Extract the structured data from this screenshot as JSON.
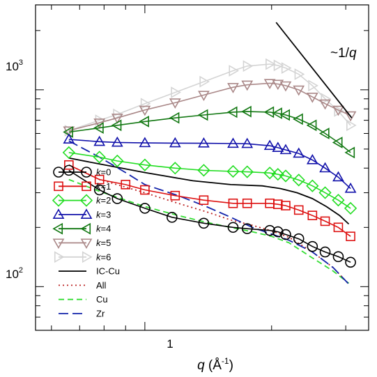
{
  "chart_data": {
    "type": "line",
    "x_scale": "log",
    "y_scale": "log",
    "xlim": [
      0.55,
      3.4
    ],
    "ylim": [
      60,
      2700
    ],
    "xlabel_main": "q",
    "xlabel_unit": "(Å",
    "xlabel_exp": "-1",
    "xlabel_close": ")",
    "x_tick_labels": [
      {
        "value": 1,
        "label": "1"
      }
    ],
    "y_tick_labels": [
      {
        "value": 100,
        "base": "10",
        "exp": "2"
      },
      {
        "value": 1000,
        "base": "10",
        "exp": "3"
      }
    ],
    "annotation": {
      "prefix": "~1/",
      "q": "q"
    },
    "reference_line": {
      "points": [
        [
          2.05,
          2200
        ],
        [
          3.1,
          720
        ]
      ]
    },
    "grid": false,
    "legend_position": "center-left",
    "series": [
      {
        "name": "k=0",
        "kind": "marker",
        "marker": "circle",
        "color": "#000000",
        "points": [
          [
            0.66,
            390
          ],
          [
            0.78,
            310
          ],
          [
            0.86,
            280
          ],
          [
            1.0,
            250
          ],
          [
            1.16,
            225
          ],
          [
            1.38,
            210
          ],
          [
            1.62,
            200
          ],
          [
            1.75,
            197
          ],
          [
            1.98,
            193
          ],
          [
            2.07,
            190
          ],
          [
            2.16,
            184
          ],
          [
            2.32,
            175
          ],
          [
            2.5,
            160
          ],
          [
            2.68,
            150
          ],
          [
            2.88,
            142
          ],
          [
            3.08,
            133
          ]
        ]
      },
      {
        "name": "k=1",
        "kind": "marker",
        "marker": "square",
        "color": "#dd1111",
        "points": [
          [
            0.66,
            415
          ],
          [
            0.78,
            350
          ],
          [
            0.9,
            330
          ],
          [
            1.0,
            310
          ],
          [
            1.18,
            290
          ],
          [
            1.38,
            275
          ],
          [
            1.62,
            265
          ],
          [
            1.75,
            265
          ],
          [
            1.98,
            265
          ],
          [
            2.07,
            262
          ],
          [
            2.16,
            258
          ],
          [
            2.32,
            245
          ],
          [
            2.5,
            230
          ],
          [
            2.68,
            215
          ],
          [
            2.88,
            200
          ],
          [
            3.08,
            180
          ]
        ]
      },
      {
        "name": "k=2",
        "kind": "marker",
        "marker": "diamond",
        "color": "#22dd22",
        "points": [
          [
            0.66,
            480
          ],
          [
            0.78,
            455
          ],
          [
            0.86,
            435
          ],
          [
            1.0,
            415
          ],
          [
            1.18,
            400
          ],
          [
            1.38,
            390
          ],
          [
            1.62,
            385
          ],
          [
            1.75,
            383
          ],
          [
            1.98,
            378
          ],
          [
            2.07,
            372
          ],
          [
            2.16,
            365
          ],
          [
            2.32,
            348
          ],
          [
            2.5,
            325
          ],
          [
            2.68,
            300
          ],
          [
            2.88,
            275
          ],
          [
            3.08,
            250
          ]
        ]
      },
      {
        "name": "k=3",
        "kind": "marker",
        "marker": "triangle-up",
        "color": "#1111aa",
        "points": [
          [
            0.66,
            560
          ],
          [
            0.78,
            545
          ],
          [
            0.86,
            540
          ],
          [
            1.0,
            537
          ],
          [
            1.18,
            536
          ],
          [
            1.38,
            535
          ],
          [
            1.62,
            533
          ],
          [
            1.75,
            532
          ],
          [
            1.98,
            520
          ],
          [
            2.07,
            508
          ],
          [
            2.16,
            495
          ],
          [
            2.32,
            475
          ],
          [
            2.5,
            440
          ],
          [
            2.68,
            400
          ],
          [
            2.88,
            360
          ],
          [
            3.08,
            315
          ]
        ]
      },
      {
        "name": "k=4",
        "kind": "marker",
        "marker": "triangle-left",
        "color": "#117711",
        "points": [
          [
            0.66,
            610
          ],
          [
            0.78,
            640
          ],
          [
            0.86,
            660
          ],
          [
            1.0,
            690
          ],
          [
            1.18,
            720
          ],
          [
            1.38,
            745
          ],
          [
            1.62,
            770
          ],
          [
            1.75,
            775
          ],
          [
            1.98,
            770
          ],
          [
            2.07,
            760
          ],
          [
            2.16,
            745
          ],
          [
            2.32,
            710
          ],
          [
            2.5,
            660
          ],
          [
            2.68,
            600
          ],
          [
            2.88,
            540
          ],
          [
            3.08,
            480
          ]
        ]
      },
      {
        "name": "k=5",
        "kind": "marker",
        "marker": "triangle-down",
        "color": "#aa8888",
        "points": [
          [
            0.66,
            620
          ],
          [
            0.78,
            680
          ],
          [
            0.86,
            720
          ],
          [
            1.0,
            790
          ],
          [
            1.18,
            860
          ],
          [
            1.38,
            940
          ],
          [
            1.62,
            1030
          ],
          [
            1.75,
            1060
          ],
          [
            1.98,
            1080
          ],
          [
            2.07,
            1070
          ],
          [
            2.16,
            1050
          ],
          [
            2.32,
            1000
          ],
          [
            2.5,
            920
          ],
          [
            2.68,
            850
          ],
          [
            2.88,
            790
          ],
          [
            3.08,
            740
          ]
        ]
      },
      {
        "name": "k=6",
        "kind": "marker",
        "marker": "triangle-right",
        "color": "#d4d4d4",
        "points": [
          [
            0.66,
            620
          ],
          [
            0.78,
            700
          ],
          [
            0.86,
            750
          ],
          [
            1.0,
            850
          ],
          [
            1.18,
            970
          ],
          [
            1.38,
            1100
          ],
          [
            1.62,
            1250
          ],
          [
            1.75,
            1320
          ],
          [
            1.98,
            1350
          ],
          [
            2.07,
            1330
          ],
          [
            2.16,
            1290
          ],
          [
            2.32,
            1200
          ],
          [
            2.5,
            1050
          ],
          [
            2.68,
            900
          ],
          [
            2.88,
            780
          ],
          [
            3.08,
            660
          ]
        ]
      },
      {
        "name": "IC-Cu",
        "kind": "line",
        "dash": "solid",
        "color": "#000000",
        "points": [
          [
            0.66,
            450
          ],
          [
            0.78,
            420
          ],
          [
            1.0,
            380
          ],
          [
            1.3,
            345
          ],
          [
            1.6,
            330
          ],
          [
            1.9,
            325
          ],
          [
            2.1,
            315
          ],
          [
            2.3,
            300
          ],
          [
            2.5,
            280
          ],
          [
            2.7,
            255
          ],
          [
            2.9,
            230
          ],
          [
            3.05,
            208
          ]
        ]
      },
      {
        "name": "All",
        "kind": "line",
        "dash": "dotted",
        "color": "#bb2222",
        "points": [
          [
            0.66,
            415
          ],
          [
            0.78,
            350
          ],
          [
            1.0,
            300
          ],
          [
            1.2,
            265
          ],
          [
            1.4,
            240
          ],
          [
            1.6,
            218
          ],
          [
            1.8,
            205
          ],
          [
            2.0,
            192
          ],
          [
            2.2,
            178
          ],
          [
            2.5,
            150
          ],
          [
            2.8,
            125
          ],
          [
            3.05,
            103
          ]
        ]
      },
      {
        "name": "Cu",
        "kind": "line",
        "dash": "dashed",
        "color": "#33dd33",
        "points": [
          [
            0.66,
            350
          ],
          [
            0.78,
            305
          ],
          [
            1.0,
            255
          ],
          [
            1.2,
            230
          ],
          [
            1.4,
            212
          ],
          [
            1.6,
            200
          ],
          [
            1.8,
            190
          ],
          [
            2.0,
            180
          ],
          [
            2.2,
            167
          ],
          [
            2.5,
            140
          ],
          [
            2.8,
            120
          ],
          [
            3.05,
            104
          ]
        ]
      },
      {
        "name": "Zr",
        "kind": "line",
        "dash": "longdash",
        "color": "#1122aa",
        "points": [
          [
            0.66,
            550
          ],
          [
            0.78,
            455
          ],
          [
            0.9,
            380
          ],
          [
            1.0,
            330
          ],
          [
            1.2,
            290
          ],
          [
            1.4,
            255
          ],
          [
            1.6,
            225
          ],
          [
            1.8,
            200
          ],
          [
            2.0,
            185
          ],
          [
            2.2,
            172
          ],
          [
            2.5,
            150
          ],
          [
            2.8,
            125
          ],
          [
            3.05,
            103
          ]
        ]
      }
    ]
  }
}
